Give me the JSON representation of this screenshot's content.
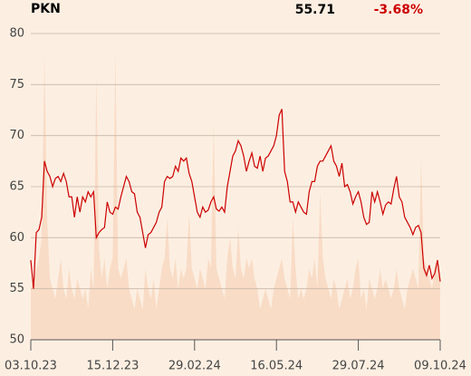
{
  "chart_data": {
    "type": "line",
    "title": "PKN",
    "last": 55.71,
    "change": "-3.68%",
    "change_color": "#cc0000",
    "categories": [
      "03.10.23",
      null,
      null,
      null,
      null,
      null,
      null,
      null,
      null,
      null,
      null,
      null,
      null,
      null,
      null,
      null,
      null,
      null,
      null,
      null,
      null,
      null,
      null,
      null,
      null,
      null,
      null,
      null,
      null,
      null,
      "15.12.23",
      null,
      null,
      null,
      null,
      null,
      null,
      null,
      null,
      null,
      null,
      null,
      null,
      null,
      null,
      null,
      null,
      null,
      null,
      null,
      null,
      null,
      null,
      null,
      null,
      null,
      null,
      null,
      null,
      null,
      "29.02.24",
      null,
      null,
      null,
      null,
      null,
      null,
      null,
      null,
      null,
      null,
      null,
      null,
      null,
      null,
      null,
      null,
      null,
      null,
      null,
      null,
      null,
      null,
      null,
      null,
      null,
      null,
      null,
      null,
      null,
      "16.05.24",
      null,
      null,
      null,
      null,
      null,
      null,
      null,
      null,
      null,
      null,
      null,
      null,
      null,
      null,
      null,
      null,
      null,
      null,
      null,
      null,
      null,
      null,
      null,
      null,
      null,
      null,
      null,
      null,
      null,
      "29.07.24",
      null,
      null,
      null,
      null,
      null,
      null,
      null,
      null,
      null,
      null,
      null,
      null,
      null,
      null,
      null,
      null,
      null,
      null,
      null,
      null,
      null,
      null,
      null,
      null,
      null,
      null,
      null,
      null,
      null,
      "09.10.24"
    ],
    "series": [
      {
        "color": "#cc0000",
        "values": [
          57.8,
          55,
          60.5,
          60.8,
          62,
          67.5,
          66.5,
          66,
          65,
          65.8,
          66,
          65.5,
          66.3,
          65.5,
          64,
          64,
          62,
          64,
          62.5,
          64,
          63.5,
          64.5,
          64,
          64.5,
          60,
          60.5,
          60.8,
          61,
          63.5,
          62.5,
          62.3,
          63,
          62.8,
          64,
          65,
          66,
          65.5,
          64.5,
          64.3,
          62.5,
          62,
          60.5,
          59,
          60.3,
          60.5,
          61,
          61.5,
          62.5,
          63,
          65.5,
          66,
          65.8,
          66,
          67,
          66.5,
          67.8,
          67.5,
          67.8,
          66.3,
          65.5,
          64,
          62.5,
          62,
          63,
          62.5,
          62.7,
          63.5,
          64,
          62.8,
          62.6,
          63,
          62.5,
          65,
          66.5,
          68,
          68.5,
          69.5,
          69,
          68,
          66.5,
          67.5,
          68.3,
          67,
          66.8,
          68,
          66.5,
          67.8,
          68,
          68.5,
          69,
          70,
          72,
          72.6,
          66.5,
          65.5,
          63.5,
          63.5,
          62.5,
          63.5,
          63,
          62.5,
          62.3,
          64.5,
          65.5,
          65.5,
          67,
          67.5,
          67.5,
          68,
          68.5,
          69,
          67.5,
          67,
          66,
          67.3,
          65,
          65.2,
          64.5,
          63.3,
          64,
          64.5,
          63.5,
          62,
          61.3,
          61.5,
          64.5,
          63.5,
          64.5,
          63.5,
          62.3,
          63.2,
          63.5,
          63.3,
          64.8,
          66,
          64,
          63.5,
          62,
          61.5,
          61,
          60.3,
          61,
          61.2,
          60.5,
          57,
          56.3,
          57.3,
          56,
          56.5,
          57.8,
          55.71
        ]
      },
      {
        "color": "#f9dcc6",
        "values": [
          55,
          56,
          57,
          58,
          60,
          78,
          62,
          56,
          55,
          54,
          56,
          58,
          55,
          54,
          57,
          55,
          54,
          56,
          55,
          54,
          55,
          53,
          57,
          55,
          76,
          59,
          56,
          58,
          55,
          57,
          58,
          78.5,
          57,
          56,
          57,
          58,
          55,
          54,
          53,
          55,
          54,
          53,
          57,
          55,
          54,
          56,
          53,
          55,
          57,
          58,
          62,
          57,
          56,
          58,
          55,
          57,
          56,
          57,
          62.5,
          57,
          56,
          55,
          57,
          56,
          55,
          58,
          57,
          71.5,
          57,
          56,
          55,
          54,
          58,
          60,
          57,
          56,
          61,
          57,
          56,
          58,
          57,
          58,
          56,
          55,
          53,
          54,
          55,
          54,
          53,
          55,
          56,
          57,
          58,
          56,
          55,
          54,
          62,
          57,
          54,
          55,
          54,
          55,
          57,
          56,
          58,
          55,
          64.5,
          58,
          56,
          55,
          54,
          56,
          55,
          53,
          54,
          55,
          56,
          54,
          55,
          57,
          58,
          54,
          55,
          53,
          56,
          55,
          54,
          55,
          57,
          55,
          56,
          55,
          54,
          55,
          57,
          55,
          54,
          53,
          55,
          56,
          57,
          56,
          55,
          68,
          58,
          57,
          56,
          55,
          57,
          58,
          56
        ]
      }
    ],
    "ylim": [
      50,
      80
    ],
    "yticks": [
      50,
      55,
      60,
      65,
      70,
      75,
      80
    ],
    "grid": true
  }
}
